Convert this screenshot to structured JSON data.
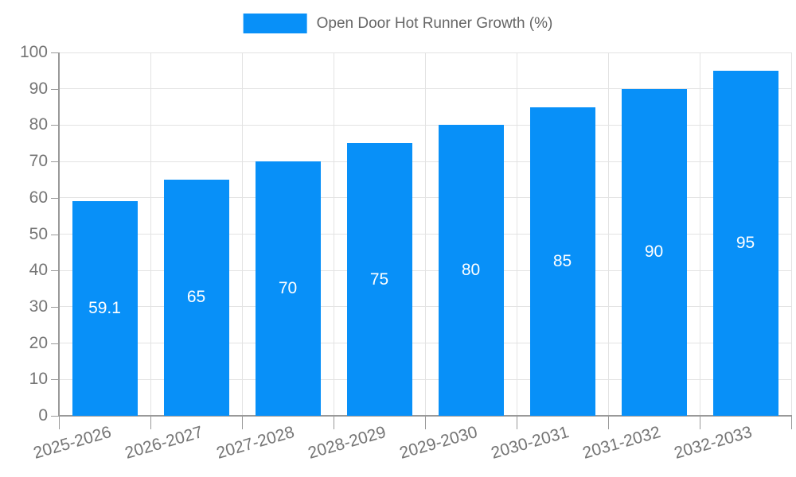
{
  "legend": {
    "label": "Open Door Hot Runner Growth (%)"
  },
  "colors": {
    "bar": "#0890f8",
    "bar_label_text": "#ffffff",
    "legend_text": "#666666",
    "axis_tick_text": "#757575",
    "gridline": "#e3e3e3",
    "axis_line": "#999999",
    "background": "#ffffff"
  },
  "chart_data": {
    "type": "bar",
    "title": "",
    "legend_entries": [
      "Open Door Hot Runner Growth (%)"
    ],
    "legend_position": "top-center",
    "categories": [
      "2025-2026",
      "2026-2027",
      "2027-2028",
      "2028-2029",
      "2029-2030",
      "2030-2031",
      "2031-2032",
      "2032-2033"
    ],
    "values": [
      59.1,
      65,
      70,
      75,
      80,
      85,
      90,
      95
    ],
    "bar_labels": [
      "59.1",
      "65",
      "70",
      "75",
      "80",
      "85",
      "90",
      "95"
    ],
    "bar_label_position": "inside-center",
    "xlabel": "",
    "ylabel": "",
    "ylim": [
      0,
      100
    ],
    "yticks": [
      0,
      10,
      20,
      30,
      40,
      50,
      60,
      70,
      80,
      90,
      100
    ],
    "grid": true,
    "x_label_rotation_deg": -16
  }
}
